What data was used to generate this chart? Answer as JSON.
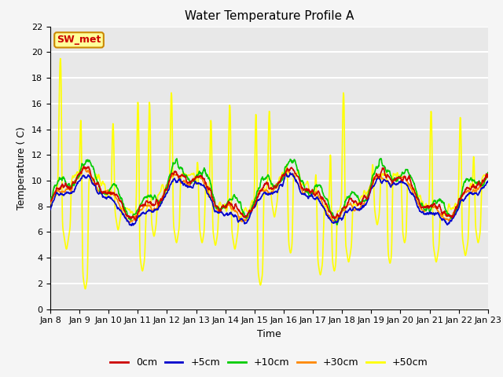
{
  "title": "Water Temperature Profile A",
  "xlabel": "Time",
  "ylabel": "Temperature ( C)",
  "ylim": [
    0,
    22
  ],
  "yticks": [
    0,
    2,
    4,
    6,
    8,
    10,
    12,
    14,
    16,
    18,
    20,
    22
  ],
  "xtick_labels": [
    "Jan 8",
    "Jan 9",
    "Jan 10",
    "Jan 11",
    "Jan 12",
    "Jan 13",
    "Jan 14",
    "Jan 15",
    "Jan 16",
    "Jan 17",
    "Jan 18",
    "Jan 19",
    "Jan 20",
    "Jan 21",
    "Jan 22",
    "Jan 23"
  ],
  "legend_labels": [
    "0cm",
    "+5cm",
    "+10cm",
    "+30cm",
    "+50cm"
  ],
  "legend_colors": [
    "#cc0000",
    "#0000cc",
    "#00cc00",
    "#ff8800",
    "#ffff00"
  ],
  "line_widths": [
    1.2,
    1.2,
    1.2,
    1.2,
    1.2
  ],
  "annotation_text": "SW_met",
  "annotation_color": "#cc0000",
  "annotation_bg": "#ffff99",
  "annotation_border": "#cc8800",
  "plot_bg": "#e8e8e8",
  "fig_bg": "#f5f5f5",
  "grid_color": "#ffffff",
  "title_fontsize": 11,
  "axis_fontsize": 9,
  "tick_fontsize": 8,
  "n_days": 15
}
